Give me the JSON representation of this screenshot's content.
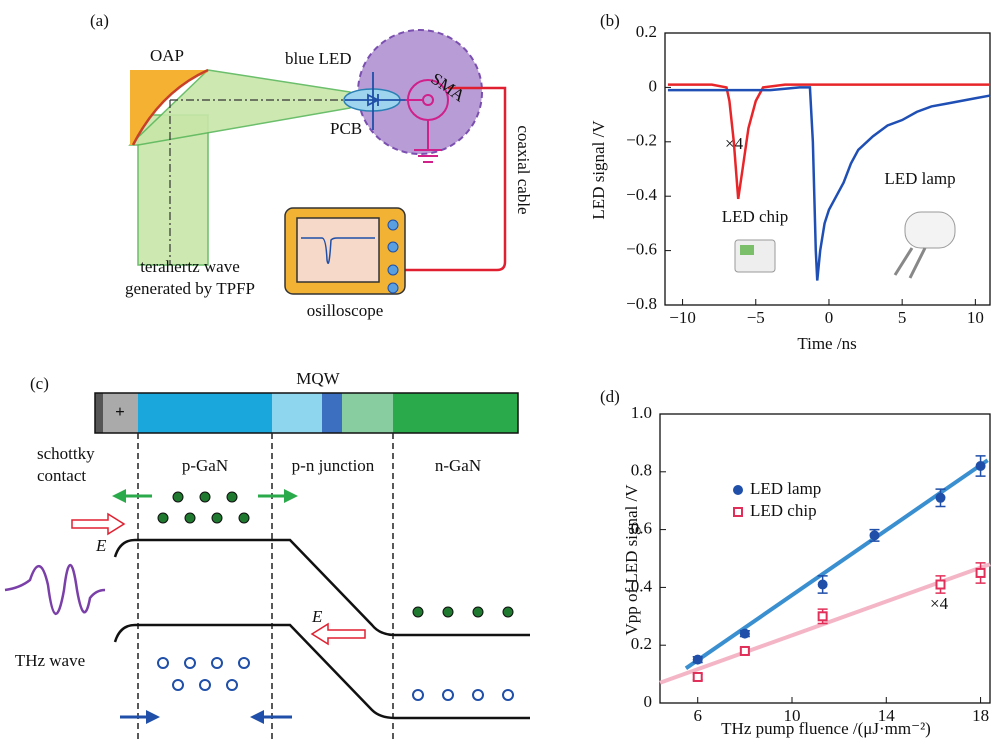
{
  "panel_a": {
    "label": "(a)",
    "oap": "OAP",
    "blue_led": "blue LED",
    "sma": "SMA",
    "pcb": "PCB",
    "cable": "coaxial cable",
    "source": [
      "terahertz wave",
      "generated by TPFP"
    ],
    "scope": "osilloscope"
  },
  "panel_c": {
    "label": "(c)",
    "mqw": "MQW",
    "plus": "+",
    "regions": [
      "schottky",
      "contact",
      "p-GaN",
      "p-n junction",
      "n-GaN"
    ],
    "field": [
      "E",
      "E"
    ],
    "wave": "THz wave"
  },
  "chart_data": [
    {
      "type": "line",
      "panel_label": "(b)",
      "xlabel": "Time /ns",
      "ylabel": "LED signal /V",
      "xlim": [
        -11.2,
        11
      ],
      "ylim": [
        -0.8,
        0.2
      ],
      "xticks": [
        {
          "value": -10,
          "label": "−10"
        },
        {
          "value": -5,
          "label": "−5"
        },
        0,
        5,
        10
      ],
      "yticks": [
        {
          "value": -0.8,
          "label": "−0.8"
        },
        {
          "value": -0.6,
          "label": "−0.6"
        },
        {
          "value": -0.4,
          "label": "−0.4"
        },
        {
          "value": -0.2,
          "label": "−0.2"
        },
        0,
        0.2
      ],
      "annotations": [
        "×4"
      ],
      "series": [
        {
          "name": "LED chip",
          "color": "#e8262a",
          "x": [
            -11,
            -8,
            -7,
            -6.8,
            -6.5,
            -6.2,
            -5.9,
            -5.5,
            -5,
            -4.5,
            -3,
            0,
            5,
            11
          ],
          "values": [
            0.01,
            0.01,
            0,
            -0.05,
            -0.2,
            -0.41,
            -0.3,
            -0.15,
            -0.05,
            0,
            0.01,
            0.01,
            0.01,
            0.01
          ]
        },
        {
          "name": "LED lamp",
          "color": "#1f4fb4",
          "x": [
            -11,
            -8,
            -4,
            -2,
            -1.3,
            -1.1,
            -0.9,
            -0.8,
            -0.6,
            -0.3,
            0,
            0.5,
            1,
            1.5,
            2,
            3,
            4,
            5,
            6,
            7,
            8,
            9,
            10,
            11
          ],
          "values": [
            -0.01,
            -0.01,
            -0.01,
            0,
            0,
            -0.2,
            -0.6,
            -0.71,
            -0.6,
            -0.5,
            -0.45,
            -0.4,
            -0.35,
            -0.28,
            -0.23,
            -0.18,
            -0.14,
            -0.12,
            -0.09,
            -0.07,
            -0.06,
            -0.05,
            -0.04,
            -0.03
          ]
        }
      ]
    },
    {
      "type": "scatter",
      "panel_label": "(d)",
      "xlabel": "THz pump fluence /(μJ·mm⁻²)",
      "ylabel": "Vpp of LED signal /V",
      "xlim": [
        4.4,
        18.4
      ],
      "ylim": [
        0,
        1
      ],
      "xticks": [
        6,
        10,
        14,
        18
      ],
      "yticks": [
        0,
        0.2,
        0.4,
        0.6,
        0.8,
        {
          "value": 1,
          "label": "1.0"
        }
      ],
      "legend": "upper left",
      "annotations": [
        "×4"
      ],
      "series": [
        {
          "name": "LED lamp",
          "color": "#1f4fa8",
          "marker": "circle",
          "x": [
            6,
            8,
            11.3,
            13.5,
            16.3,
            18
          ],
          "values": [
            0.15,
            0.24,
            0.41,
            0.58,
            0.71,
            0.82
          ],
          "errors": [
            0.01,
            0.01,
            0.03,
            0.02,
            0.03,
            0.035
          ],
          "fit": {
            "x": [
              5.5,
              18.3
            ],
            "values": [
              0.12,
              0.84
            ]
          },
          "fit_color": "#3a8fd0"
        },
        {
          "name": "LED chip",
          "color": "#e0305a",
          "marker": "square",
          "x": [
            6,
            8,
            11.3,
            16.3,
            18
          ],
          "values": [
            0.09,
            0.18,
            0.3,
            0.41,
            0.45
          ],
          "errors": [
            0.01,
            0.01,
            0.025,
            0.03,
            0.035
          ],
          "fit": {
            "x": [
              4.4,
              18.4
            ],
            "values": [
              0.07,
              0.48
            ]
          },
          "fit_color": "#f4b6c6"
        }
      ]
    }
  ]
}
